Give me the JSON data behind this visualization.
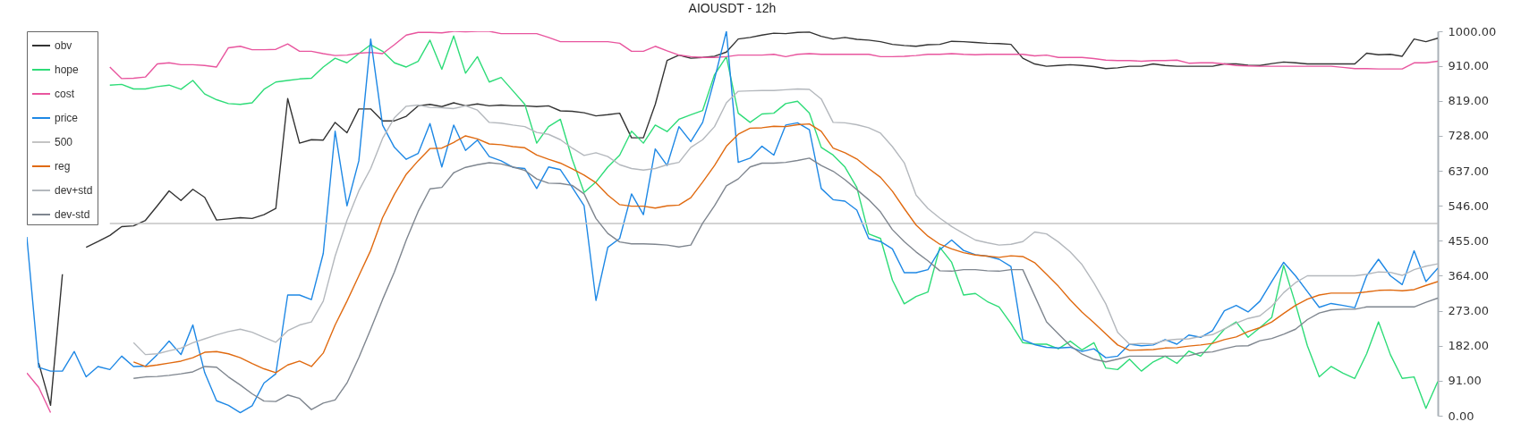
{
  "chart_data": {
    "type": "line",
    "title": "AIOUSDT - 12h",
    "categories": [
      null,
      null,
      null,
      null,
      null,
      null,
      null,
      null,
      null,
      null,
      null,
      null,
      null,
      null,
      null,
      null,
      null,
      null,
      null,
      null,
      null,
      null,
      null,
      null,
      null,
      null,
      null,
      null,
      null,
      null,
      null,
      null,
      null,
      null,
      null,
      null,
      null,
      null,
      null,
      null,
      null,
      null,
      null,
      null,
      null,
      null,
      null,
      null,
      null,
      null,
      null,
      null,
      null,
      null,
      null,
      null,
      null,
      null,
      null,
      null,
      null,
      null,
      null,
      null,
      null,
      null,
      null,
      null,
      null,
      null,
      null,
      null,
      null,
      null,
      null,
      null,
      null,
      null,
      null,
      null,
      null,
      null,
      null,
      null,
      null,
      null,
      null,
      null,
      null,
      null,
      null,
      null,
      null,
      null,
      null,
      null,
      null,
      null,
      null,
      null,
      null,
      null,
      null,
      null,
      null,
      null,
      null,
      null,
      null,
      null,
      null,
      null,
      null,
      null,
      null,
      null,
      null,
      null,
      null,
      null
    ],
    "series": [
      {
        "name": "obv",
        "color": "#333333",
        "values": [
          null,
          137,
          27,
          368,
          null,
          438,
          453,
          469,
          492,
          494,
          508,
          546,
          585,
          560,
          589,
          568,
          509,
          512,
          515,
          513,
          523,
          539,
          825,
          709,
          718,
          717,
          763,
          736,
          798,
          798,
          767,
          767,
          779,
          806,
          810,
          804,
          814,
          806,
          811,
          806,
          808,
          806,
          806,
          804,
          806,
          793,
          792,
          788,
          780,
          783,
          787,
          723,
          723,
          810,
          924,
          938,
          930,
          932,
          935,
          946,
          980,
          984,
          990,
          995,
          994,
          997,
          998,
          987,
          980,
          984,
          979,
          977,
          973,
          966,
          963,
          961,
          965,
          966,
          974,
          973,
          971,
          969,
          968,
          966,
          930,
          915,
          909,
          911,
          913,
          911,
          908,
          903,
          905,
          909,
          909,
          915,
          911,
          909,
          909,
          909,
          909,
          915,
          915,
          912,
          911,
          916,
          920,
          918,
          915,
          915,
          915,
          915,
          915,
          943,
          939,
          940,
          935,
          980,
          973,
          982
        ]
      },
      {
        "name": "hope",
        "color": "#2edc78",
        "values": [
          null,
          null,
          null,
          null,
          null,
          null,
          null,
          860,
          862,
          850,
          850,
          856,
          860,
          849,
          872,
          837,
          822,
          812,
          810,
          814,
          849,
          868,
          872,
          876,
          878,
          907,
          930,
          918,
          942,
          965,
          948,
          918,
          907,
          922,
          977,
          901,
          988,
          891,
          934,
          868,
          880,
          845,
          810,
          709,
          752,
          771,
          667,
          581,
          608,
          647,
          678,
          740,
          709,
          756,
          739,
          771,
          783,
          794,
          887,
          934,
          787,
          763,
          785,
          787,
          812,
          818,
          787,
          698,
          678,
          647,
          594,
          473,
          461,
          353,
          291,
          310,
          322,
          438,
          399,
          314,
          318,
          297,
          283,
          240,
          190,
          186,
          186,
          174,
          194,
          171,
          190,
          124,
          120,
          147,
          116,
          140,
          155,
          136,
          168,
          155,
          190,
          225,
          244,
          204,
          229,
          256,
          391,
          291,
          182,
          101,
          128,
          111,
          97,
          161,
          244,
          159,
          97,
          101,
          19,
          89
        ]
      },
      {
        "name": "cost",
        "color": "#e8559e",
        "values": [
          111,
          74,
          8,
          null,
          null,
          null,
          null,
          907,
          877,
          878,
          881,
          915,
          918,
          913,
          913,
          911,
          907,
          957,
          961,
          952,
          952,
          953,
          967,
          948,
          948,
          942,
          937,
          938,
          943,
          945,
          942,
          965,
          990,
          997,
          997,
          996,
          1000,
          999,
          1000,
          1000,
          994,
          994,
          994,
          994,
          984,
          973,
          973,
          973,
          973,
          973,
          969,
          948,
          948,
          961,
          949,
          938,
          934,
          932,
          932,
          934,
          938,
          938,
          938,
          940,
          934,
          940,
          942,
          940,
          940,
          940,
          940,
          940,
          934,
          934,
          935,
          937,
          940,
          940,
          942,
          940,
          939,
          940,
          940,
          940,
          940,
          936,
          938,
          932,
          932,
          932,
          929,
          925,
          924,
          924,
          922,
          924,
          924,
          925,
          917,
          918,
          918,
          915,
          911,
          910,
          909,
          909,
          909,
          909,
          909,
          909,
          909,
          906,
          903,
          903,
          902,
          902,
          902,
          918,
          918,
          922
        ]
      },
      {
        "name": "price",
        "color": "#1e88e5",
        "values": [
          465,
          126,
          116,
          116,
          167,
          101,
          128,
          120,
          155,
          128,
          129,
          159,
          194,
          159,
          236,
          112,
          39,
          27,
          8,
          26,
          85,
          109,
          314,
          314,
          302,
          422,
          740,
          546,
          663,
          980,
          756,
          698,
          667,
          682,
          760,
          647,
          756,
          690,
          717,
          674,
          663,
          646,
          643,
          591,
          647,
          640,
          594,
          546,
          300,
          438,
          461,
          577,
          523,
          694,
          651,
          752,
          713,
          763,
          876,
          1000,
          659,
          670,
          701,
          678,
          756,
          762,
          744,
          591,
          562,
          558,
          535,
          461,
          453,
          434,
          372,
          372,
          380,
          432,
          457,
          430,
          419,
          415,
          407,
          388,
          198,
          185,
          178,
          176,
          178,
          167,
          174,
          151,
          155,
          186,
          182,
          184,
          198,
          186,
          210,
          204,
          221,
          273,
          287,
          270,
          298,
          349,
          399,
          364,
          323,
          282,
          292,
          287,
          281,
          364,
          407,
          364,
          341,
          429,
          349,
          384
        ]
      },
      {
        "name": "500",
        "color": "#c4c4c4",
        "values": [
          null,
          null,
          null,
          null,
          null,
          null,
          null,
          500,
          500,
          500,
          500,
          500,
          500,
          500,
          500,
          500,
          500,
          500,
          500,
          500,
          500,
          500,
          500,
          500,
          500,
          500,
          500,
          500,
          500,
          500,
          500,
          500,
          500,
          500,
          500,
          500,
          500,
          500,
          500,
          500,
          500,
          500,
          500,
          500,
          500,
          500,
          500,
          500,
          500,
          500,
          500,
          500,
          500,
          500,
          500,
          500,
          500,
          500,
          500,
          500,
          500,
          500,
          500,
          500,
          500,
          500,
          500,
          500,
          500,
          500,
          500,
          500,
          500,
          500,
          500,
          500,
          500,
          500,
          500,
          500,
          500,
          500,
          500,
          500,
          500,
          500,
          500,
          500,
          500,
          500,
          500,
          500,
          500,
          500,
          500,
          500,
          500,
          500,
          500,
          500,
          500,
          500,
          500,
          500,
          500,
          500,
          500,
          500,
          500,
          500,
          500,
          500,
          500,
          500,
          500,
          500,
          500,
          500,
          500,
          500
        ]
      },
      {
        "name": "reg",
        "color": "#e06a10",
        "values": [
          null,
          null,
          null,
          null,
          null,
          null,
          null,
          null,
          null,
          140,
          128,
          132,
          137,
          142,
          151,
          165,
          167,
          161,
          151,
          136,
          122,
          112,
          132,
          142,
          128,
          163,
          236,
          298,
          364,
          430,
          515,
          576,
          628,
          663,
          695,
          696,
          711,
          728,
          720,
          707,
          705,
          700,
          697,
          678,
          667,
          657,
          642,
          626,
          606,
          574,
          549,
          545,
          545,
          540,
          546,
          548,
          567,
          608,
          651,
          701,
          732,
          748,
          749,
          753,
          752,
          757,
          759,
          740,
          696,
          684,
          668,
          643,
          620,
          584,
          539,
          496,
          467,
          446,
          434,
          424,
          418,
          415,
          412,
          416,
          414,
          398,
          368,
          337,
          301,
          269,
          242,
          213,
          184,
          170,
          171,
          172,
          176,
          177,
          181,
          184,
          188,
          198,
          205,
          219,
          229,
          244,
          266,
          287,
          303,
          314,
          319,
          319,
          319,
          322,
          326,
          327,
          325,
          328,
          339,
          349
        ]
      },
      {
        "name": "dev+std",
        "color": "#b4b8bd",
        "values": [
          null,
          null,
          null,
          null,
          null,
          null,
          null,
          null,
          null,
          190,
          159,
          161,
          169,
          176,
          190,
          200,
          210,
          219,
          225,
          217,
          204,
          191,
          221,
          236,
          244,
          298,
          415,
          508,
          585,
          643,
          721,
          775,
          805,
          808,
          802,
          801,
          799,
          806,
          795,
          763,
          761,
          756,
          752,
          737,
          732,
          718,
          696,
          677,
          684,
          674,
          653,
          643,
          639,
          643,
          653,
          659,
          698,
          718,
          752,
          814,
          844,
          845,
          846,
          846,
          848,
          850,
          849,
          824,
          763,
          762,
          757,
          749,
          735,
          700,
          658,
          574,
          539,
          514,
          492,
          474,
          457,
          450,
          444,
          446,
          453,
          478,
          473,
          452,
          426,
          393,
          345,
          291,
          217,
          186,
          188,
          187,
          196,
          199,
          200,
          206,
          211,
          226,
          241,
          253,
          260,
          285,
          320,
          346,
          364,
          364,
          364,
          364,
          364,
          368,
          374,
          373,
          365,
          380,
          389,
          395
        ]
      },
      {
        "name": "dev-std",
        "color": "#7f868f",
        "values": [
          null,
          null,
          null,
          null,
          null,
          null,
          null,
          null,
          null,
          97,
          101,
          102,
          105,
          109,
          114,
          128,
          126,
          101,
          80,
          57,
          38,
          37,
          54,
          45,
          16,
          33,
          41,
          85,
          151,
          225,
          302,
          374,
          457,
          531,
          590,
          594,
          632,
          646,
          653,
          658,
          655,
          647,
          638,
          616,
          605,
          604,
          599,
          577,
          513,
          474,
          452,
          447,
          447,
          446,
          444,
          439,
          444,
          501,
          546,
          598,
          616,
          647,
          657,
          657,
          659,
          664,
          670,
          651,
          636,
          614,
          588,
          562,
          530,
          484,
          453,
          426,
          403,
          377,
          376,
          380,
          380,
          377,
          376,
          380,
          380,
          312,
          244,
          213,
          182,
          160,
          147,
          140,
          147,
          155,
          155,
          155,
          155,
          155,
          156,
          164,
          166,
          174,
          181,
          182,
          195,
          201,
          212,
          225,
          250,
          267,
          275,
          277,
          277,
          283,
          283,
          283,
          283,
          283,
          295,
          306
        ]
      }
    ],
    "ylim": [
      0,
      1000
    ],
    "yticks": [
      {
        "value": 0,
        "label": "0.00"
      },
      {
        "value": 91,
        "label": "91.00"
      },
      {
        "value": 182,
        "label": "182.00"
      },
      {
        "value": 273,
        "label": "273.00"
      },
      {
        "value": 364,
        "label": "364.00"
      },
      {
        "value": 455,
        "label": "455.00"
      },
      {
        "value": 546,
        "label": "546.00"
      },
      {
        "value": 637,
        "label": "637.00"
      },
      {
        "value": 728,
        "label": "728.00"
      },
      {
        "value": 819,
        "label": "819.00"
      },
      {
        "value": 910,
        "label": "910.00"
      },
      {
        "value": 1000,
        "label": "1000.00"
      }
    ],
    "tick_labels": "y",
    "grid": false,
    "legend": "top left",
    "marker": "none",
    "line_style": "solid"
  }
}
